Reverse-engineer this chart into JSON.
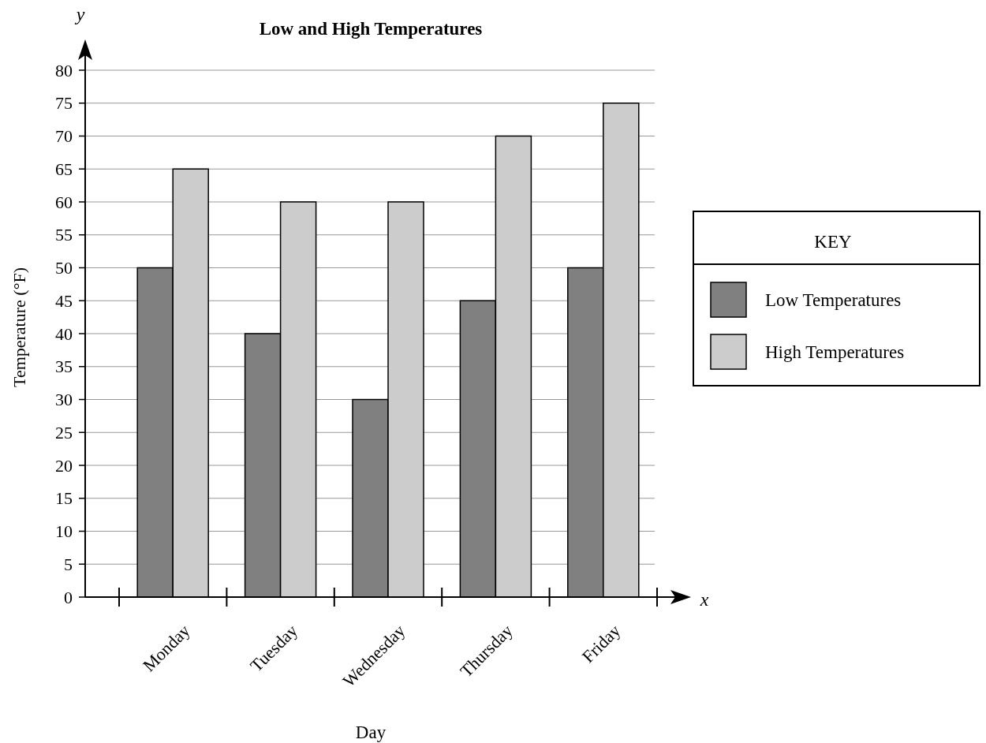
{
  "chart_data": {
    "type": "bar",
    "title": "Low and High Temperatures",
    "xlabel": "Day",
    "ylabel": "Temperature (°F)",
    "legend_title": "KEY",
    "legend": "right",
    "grid": "y",
    "annotations": [
      "y",
      "x"
    ],
    "categories": [
      "Monday",
      "Tuesday",
      "Wednesday",
      "Thursday",
      "Friday"
    ],
    "series": [
      {
        "name": "Low Temperatures",
        "color": "#808080",
        "values": [
          50,
          40,
          30,
          45,
          50
        ]
      },
      {
        "name": "High Temperatures",
        "color": "#cccccc",
        "values": [
          65,
          60,
          60,
          70,
          75
        ]
      }
    ],
    "ylim": [
      0,
      80
    ],
    "yticks": [
      0,
      5,
      10,
      15,
      20,
      25,
      30,
      35,
      40,
      45,
      50,
      55,
      60,
      65,
      70,
      75,
      80
    ]
  }
}
